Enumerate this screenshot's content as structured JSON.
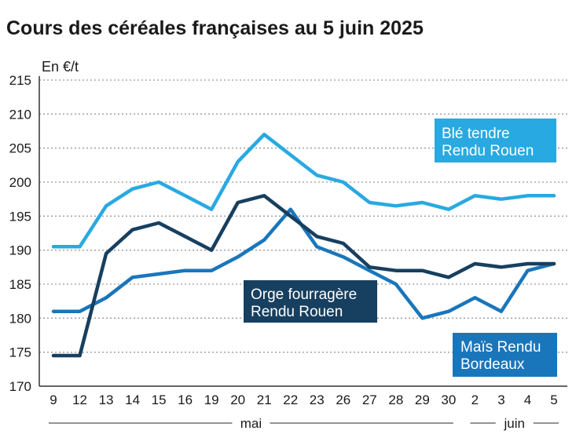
{
  "chart_data": {
    "type": "line",
    "title": "Cours des céréales françaises au 5 juin 2025",
    "ylabel": "En €/t",
    "ylim": [
      170,
      215
    ],
    "yticks": [
      170,
      175,
      180,
      185,
      190,
      195,
      200,
      205,
      210,
      215
    ],
    "categories": [
      "9",
      "12",
      "13",
      "14",
      "15",
      "16",
      "19",
      "20",
      "21",
      "22",
      "23",
      "26",
      "27",
      "28",
      "29",
      "30",
      "2",
      "3",
      "4",
      "5"
    ],
    "months": [
      {
        "label": "mai",
        "from": 0,
        "to": 15
      },
      {
        "label": "juin",
        "from": 16,
        "to": 19
      }
    ],
    "series": [
      {
        "name": "Blé tendre Rendu Rouen",
        "label_lines": [
          "Blé tendre",
          "Rendu Rouen"
        ],
        "color": "#29a9e1",
        "values": [
          190.5,
          190.5,
          196.5,
          199,
          200,
          198,
          196,
          203,
          207,
          204,
          201,
          200,
          197,
          196.5,
          197,
          196,
          198,
          197.5,
          198,
          198
        ]
      },
      {
        "name": "Orge fourragère Rendu Rouen",
        "label_lines": [
          "Orge fourragère",
          "Rendu Rouen"
        ],
        "color": "#173f5f",
        "values": [
          174.5,
          174.5,
          189.5,
          193,
          194,
          192,
          190,
          197,
          198,
          195,
          192,
          191,
          187.5,
          187,
          187,
          186,
          188,
          187.5,
          188,
          188
        ]
      },
      {
        "name": "Maïs Rendu Bordeaux",
        "label_lines": [
          "Maïs Rendu",
          "Bordeaux"
        ],
        "color": "#1a76bb",
        "values": [
          181,
          181,
          183,
          186,
          186.5,
          187,
          187,
          189,
          191.5,
          196,
          190.5,
          189,
          187,
          185,
          180,
          181,
          183,
          181,
          187,
          188
        ]
      }
    ]
  }
}
